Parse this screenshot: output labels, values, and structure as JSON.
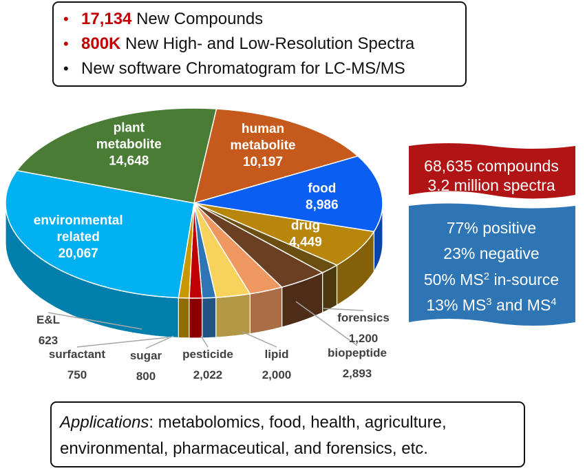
{
  "highlights": [
    {
      "number": "17,134",
      "text": "New Compounds"
    },
    {
      "number": "800K",
      "text": "New High- and Low-Resolution Spectra"
    },
    {
      "number": "",
      "text": "New software Chromatogram for LC-MS/MS"
    }
  ],
  "stats": {
    "summary": [
      "68,635 compounds",
      "3.2 million spectra"
    ],
    "positive": "77% positive",
    "negative": "23% negative",
    "ms2": {
      "pre": "50% MS",
      "sup": "2",
      "post": " in-source"
    },
    "ms3": {
      "pre": "13% MS",
      "sup1": "3",
      "mid": " and MS",
      "sup2": "4"
    },
    "colors": {
      "summary": "#b01414",
      "details": "#2e75b6"
    }
  },
  "applications": {
    "label": "Applications",
    "line1": ": metabolomics, food, health, agriculture,",
    "line2": "environmental, pharmaceutical, and forensics, etc."
  },
  "chart_data": {
    "type": "pie",
    "style": "3d",
    "slices": [
      {
        "name": [
          "plant",
          "metabolite"
        ],
        "value": 14648,
        "display": "14,648",
        "color": "#4a7c36",
        "label_pos": "inside"
      },
      {
        "name": [
          "human",
          "metabolite"
        ],
        "value": 10197,
        "display": "10,197",
        "color": "#c55a1c",
        "label_pos": "inside"
      },
      {
        "name": [
          "food"
        ],
        "value": 8986,
        "display": "8,986",
        "color": "#0b5ef2",
        "label_pos": "inside"
      },
      {
        "name": [
          "drug"
        ],
        "value": 4449,
        "display": "4,449",
        "color": "#b8860b",
        "label_pos": "inside"
      },
      {
        "name": [
          "forensics"
        ],
        "value": 1200,
        "display": "1,200",
        "color": "#6b4f12",
        "label_pos": "outside"
      },
      {
        "name": [
          "biopeptide"
        ],
        "value": 2893,
        "display": "2,893",
        "color": "#6b3f22",
        "label_pos": "outside"
      },
      {
        "name": [
          "lipid"
        ],
        "value": 2000,
        "display": "2,000",
        "color": "#ee9760",
        "label_pos": "outside"
      },
      {
        "name": [
          "pesticide"
        ],
        "value": 2022,
        "display": "2,022",
        "color": "#f7d35e",
        "label_pos": "outside"
      },
      {
        "name": [
          "sugar"
        ],
        "value": 800,
        "display": "800",
        "color": "#2e75b6",
        "label_pos": "outside"
      },
      {
        "name": [
          "surfactant"
        ],
        "value": 750,
        "display": "750",
        "color": "#c00000",
        "label_pos": "outside"
      },
      {
        "name": [
          "E&L"
        ],
        "value": 623,
        "display": "623",
        "color": "#c99700",
        "label_pos": "outside"
      },
      {
        "name": [
          "environmental",
          "related"
        ],
        "value": 20067,
        "display": "20,067",
        "color": "#00b0f0",
        "label_pos": "inside"
      }
    ]
  }
}
